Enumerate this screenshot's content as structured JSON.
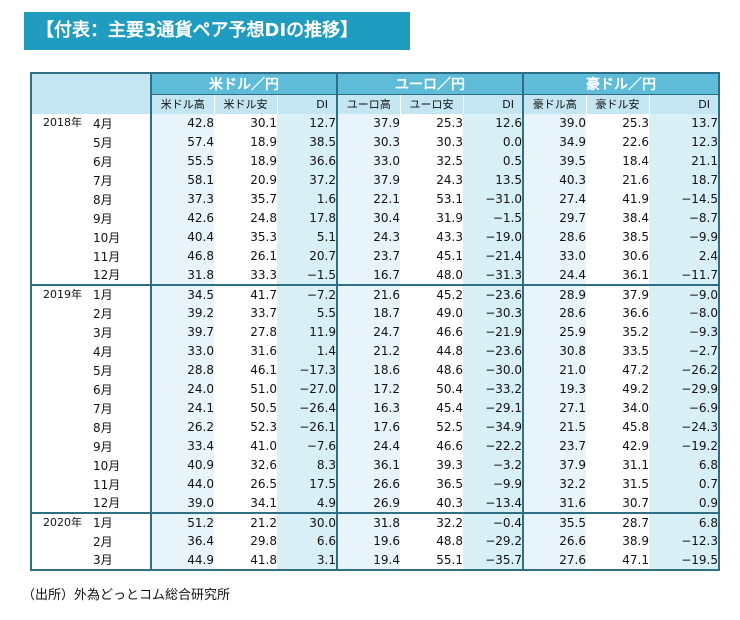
{
  "title": "【付表：主要3通貨ペア予想DIの推移】",
  "groups": [
    "米ドル／円",
    "ユーロ／円",
    "豪ドル／円"
  ],
  "subheaders": [
    "米ドル高",
    "米ドル安",
    "DI",
    "ユーロ高",
    "ユーロ安",
    "DI",
    "豪ドル高",
    "豪ドル安",
    "DI"
  ],
  "years": [
    {
      "label": "2018年",
      "rows": [
        {
          "month": "4月",
          "values": [
            "42.8",
            "30.1",
            "12.7",
            "37.9",
            "25.3",
            "12.6",
            "39.0",
            "25.3",
            "13.7"
          ]
        },
        {
          "month": "5月",
          "values": [
            "57.4",
            "18.9",
            "38.5",
            "30.3",
            "30.3",
            "0.0",
            "34.9",
            "22.6",
            "12.3"
          ]
        },
        {
          "month": "6月",
          "values": [
            "55.5",
            "18.9",
            "36.6",
            "33.0",
            "32.5",
            "0.5",
            "39.5",
            "18.4",
            "21.1"
          ]
        },
        {
          "month": "7月",
          "values": [
            "58.1",
            "20.9",
            "37.2",
            "37.9",
            "24.3",
            "13.5",
            "40.3",
            "21.6",
            "18.7"
          ]
        },
        {
          "month": "8月",
          "values": [
            "37.3",
            "35.7",
            "1.6",
            "22.1",
            "53.1",
            "−31.0",
            "27.4",
            "41.9",
            "−14.5"
          ]
        },
        {
          "month": "9月",
          "values": [
            "42.6",
            "24.8",
            "17.8",
            "30.4",
            "31.9",
            "−1.5",
            "29.7",
            "38.4",
            "−8.7"
          ]
        },
        {
          "month": "10月",
          "values": [
            "40.4",
            "35.3",
            "5.1",
            "24.3",
            "43.3",
            "−19.0",
            "28.6",
            "38.5",
            "−9.9"
          ]
        },
        {
          "month": "11月",
          "values": [
            "46.8",
            "26.1",
            "20.7",
            "23.7",
            "45.1",
            "−21.4",
            "33.0",
            "30.6",
            "2.4"
          ]
        },
        {
          "month": "12月",
          "values": [
            "31.8",
            "33.3",
            "−1.5",
            "16.7",
            "48.0",
            "−31.3",
            "24.4",
            "36.1",
            "−11.7"
          ]
        }
      ]
    },
    {
      "label": "2019年",
      "rows": [
        {
          "month": "1月",
          "values": [
            "34.5",
            "41.7",
            "−7.2",
            "21.6",
            "45.2",
            "−23.6",
            "28.9",
            "37.9",
            "−9.0"
          ]
        },
        {
          "month": "2月",
          "values": [
            "39.2",
            "33.7",
            "5.5",
            "18.7",
            "49.0",
            "−30.3",
            "28.6",
            "36.6",
            "−8.0"
          ]
        },
        {
          "month": "3月",
          "values": [
            "39.7",
            "27.8",
            "11.9",
            "24.7",
            "46.6",
            "−21.9",
            "25.9",
            "35.2",
            "−9.3"
          ]
        },
        {
          "month": "4月",
          "values": [
            "33.0",
            "31.6",
            "1.4",
            "21.2",
            "44.8",
            "−23.6",
            "30.8",
            "33.5",
            "−2.7"
          ]
        },
        {
          "month": "5月",
          "values": [
            "28.8",
            "46.1",
            "−17.3",
            "18.6",
            "48.6",
            "−30.0",
            "21.0",
            "47.2",
            "−26.2"
          ]
        },
        {
          "month": "6月",
          "values": [
            "24.0",
            "51.0",
            "−27.0",
            "17.2",
            "50.4",
            "−33.2",
            "19.3",
            "49.2",
            "−29.9"
          ]
        },
        {
          "month": "7月",
          "values": [
            "24.1",
            "50.5",
            "−26.4",
            "16.3",
            "45.4",
            "−29.1",
            "27.1",
            "34.0",
            "−6.9"
          ]
        },
        {
          "month": "8月",
          "values": [
            "26.2",
            "52.3",
            "−26.1",
            "17.6",
            "52.5",
            "−34.9",
            "21.5",
            "45.8",
            "−24.3"
          ]
        },
        {
          "month": "9月",
          "values": [
            "33.4",
            "41.0",
            "−7.6",
            "24.4",
            "46.6",
            "−22.2",
            "23.7",
            "42.9",
            "−19.2"
          ]
        },
        {
          "month": "10月",
          "values": [
            "40.9",
            "32.6",
            "8.3",
            "36.1",
            "39.3",
            "−3.2",
            "37.9",
            "31.1",
            "6.8"
          ]
        },
        {
          "month": "11月",
          "values": [
            "44.0",
            "26.5",
            "17.5",
            "26.6",
            "36.5",
            "−9.9",
            "32.2",
            "31.5",
            "0.7"
          ]
        },
        {
          "month": "12月",
          "values": [
            "39.0",
            "34.1",
            "4.9",
            "26.9",
            "40.3",
            "−13.4",
            "31.6",
            "30.7",
            "0.9"
          ]
        }
      ]
    },
    {
      "label": "2020年",
      "rows": [
        {
          "month": "1月",
          "values": [
            "51.2",
            "21.2",
            "30.0",
            "31.8",
            "32.2",
            "−0.4",
            "35.5",
            "28.7",
            "6.8"
          ]
        },
        {
          "month": "2月",
          "values": [
            "36.4",
            "29.8",
            "6.6",
            "19.6",
            "48.8",
            "−29.2",
            "26.6",
            "38.9",
            "−12.3"
          ]
        },
        {
          "month": "3月",
          "values": [
            "44.9",
            "41.8",
            "3.1",
            "19.4",
            "55.1",
            "−35.7",
            "27.6",
            "47.1",
            "−19.5"
          ]
        }
      ]
    }
  ],
  "source": "（出所）外為どっとコム総合研究所"
}
